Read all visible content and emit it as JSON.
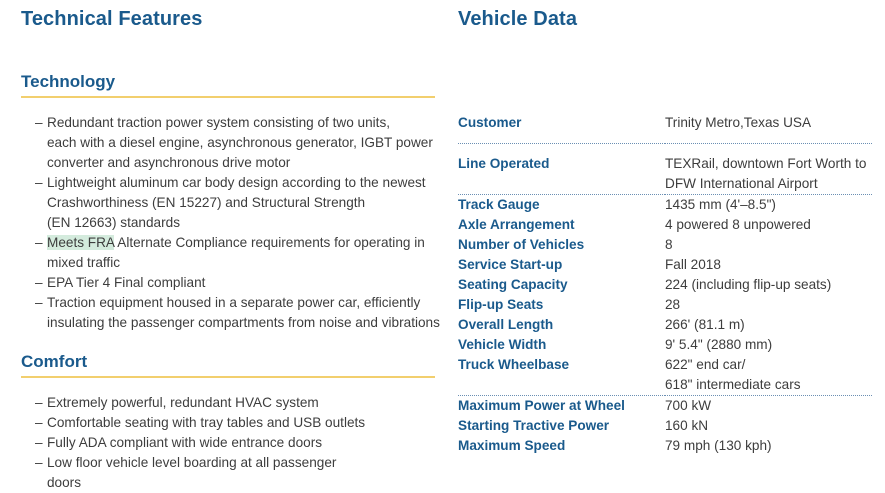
{
  "left": {
    "title": "Technical Features",
    "technology": {
      "heading": "Technology",
      "items": [
        [
          "Redundant traction power system consisting of two units,",
          "each with a diesel engine, asynchronous generator, IGBT power",
          "converter and asynchronous drive motor"
        ],
        [
          "Lightweight aluminum car body design according to the newest",
          "Crashworthiness (EN 15227) and Structural Strength",
          "(EN 12663) standards"
        ],
        [
          "EPA Tier 4 Final compliant"
        ],
        [
          "Traction equipment housed in a separate power car, efficiently",
          "insulating the passenger compartments from noise and vibrations"
        ]
      ],
      "fra_item": {
        "highlight": "Meets FRA",
        "rest": " Alternate Compliance requirements for operating in",
        "line2": "mixed traffic"
      }
    },
    "comfort": {
      "heading": "Comfort",
      "items": [
        [
          "Extremely powerful, redundant HVAC system"
        ],
        [
          "Comfortable seating with tray tables and USB outlets"
        ],
        [
          "Fully ADA compliant with wide entrance doors"
        ],
        [
          "Low floor vehicle level boarding at all passenger",
          "doors"
        ]
      ]
    }
  },
  "right": {
    "title": "Vehicle Data",
    "rows": [
      {
        "key": "Customer",
        "value": [
          "Trinity Metro,Texas  USA"
        ]
      },
      {
        "key": "Line Operated",
        "value": [
          "TEXRail, downtown Fort Worth to",
          "DFW International Airport"
        ]
      },
      {
        "key": "Track Gauge",
        "value": [
          "1435 mm (4'–8.5\")"
        ]
      },
      {
        "key": "Axle Arrangement",
        "value": [
          "4 powered 8 unpowered"
        ]
      },
      {
        "key": "Number of Vehicles",
        "value": [
          "8"
        ]
      },
      {
        "key": "Service Start-up",
        "value": [
          "Fall 2018"
        ]
      },
      {
        "key": "Seating Capacity",
        "value": [
          "224 (including flip-up seats)"
        ]
      },
      {
        "key": "Flip-up Seats",
        "value": [
          "28"
        ]
      },
      {
        "key": "Overall Length",
        "value": [
          "266' (81.1 m)"
        ]
      },
      {
        "key": "Vehicle Width",
        "value": [
          "9' 5.4\" (2880 mm)"
        ]
      },
      {
        "key": "Truck Wheelbase",
        "value": [
          "622\" end car/",
          "618\" intermediate cars"
        ]
      },
      {
        "key": "Maximum Power at Wheel",
        "value": [
          "700 kW"
        ]
      },
      {
        "key": "Starting Tractive Power",
        "value": [
          "160 kN"
        ]
      },
      {
        "key": "Maximum Speed",
        "value": [
          "79 mph (130 kph)"
        ]
      }
    ]
  }
}
